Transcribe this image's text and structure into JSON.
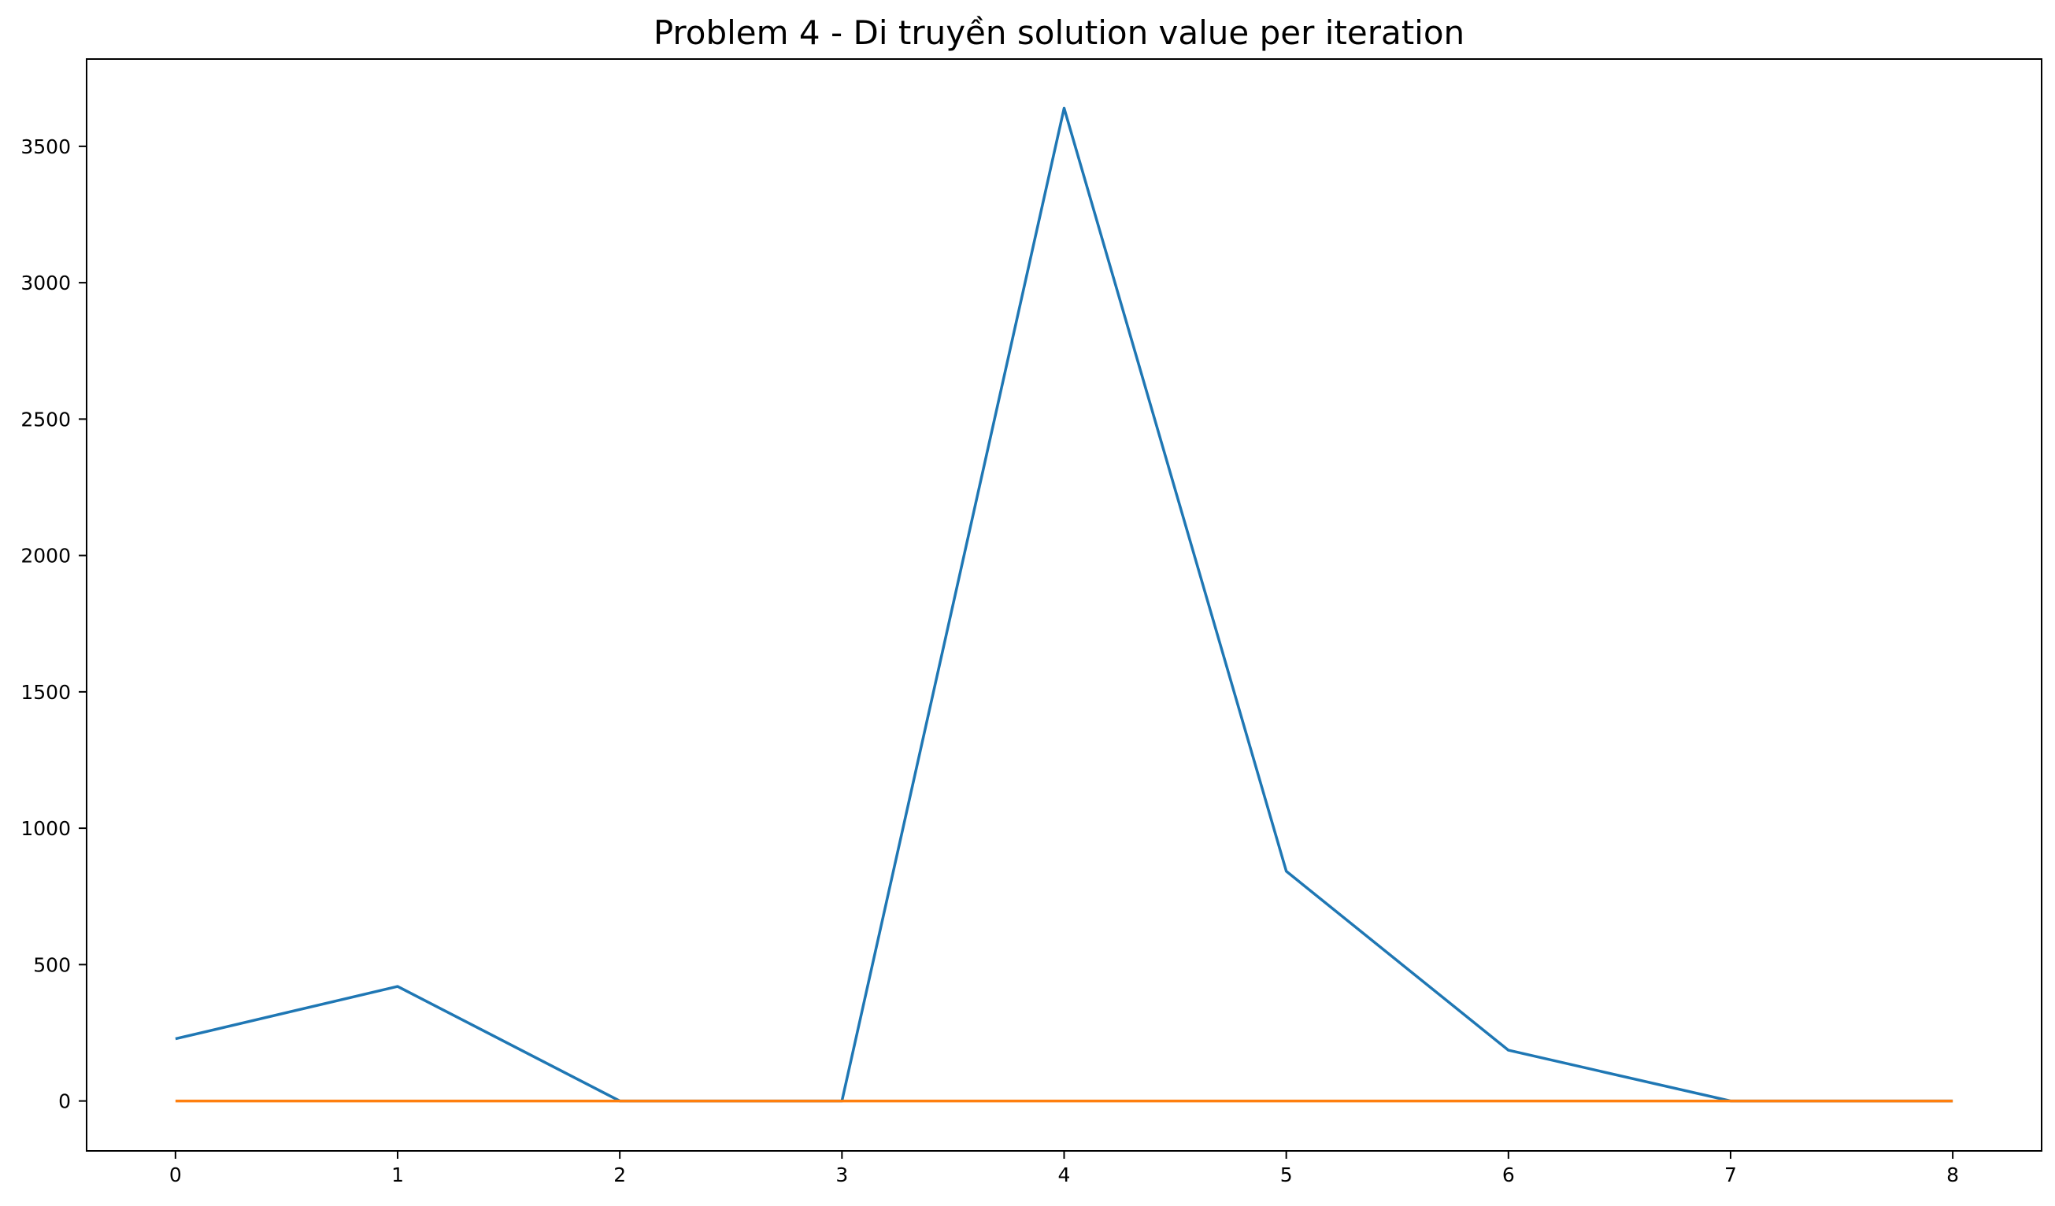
{
  "chart_data": {
    "type": "line",
    "title": "Problem 4 - Di truyền solution value per iteration",
    "xlabel": "",
    "ylabel": "",
    "x": [
      0,
      1,
      2,
      3,
      4,
      5,
      6,
      7,
      8
    ],
    "xlim": [
      -0.4,
      8.4
    ],
    "ylim": [
      -183,
      3820
    ],
    "xticks": [
      0,
      1,
      2,
      3,
      4,
      5,
      6,
      7,
      8
    ],
    "yticks": [
      0,
      500,
      1000,
      1500,
      2000,
      2500,
      3000,
      3500
    ],
    "grid": false,
    "legend": false,
    "series": [
      {
        "color": "#1f77b4",
        "values": [
          228,
          420,
          0,
          0,
          3640,
          842,
          186,
          0,
          0
        ]
      },
      {
        "color": "#ff7f0e",
        "values": [
          0,
          0,
          0,
          0,
          0,
          0,
          0,
          0,
          0
        ]
      }
    ]
  }
}
